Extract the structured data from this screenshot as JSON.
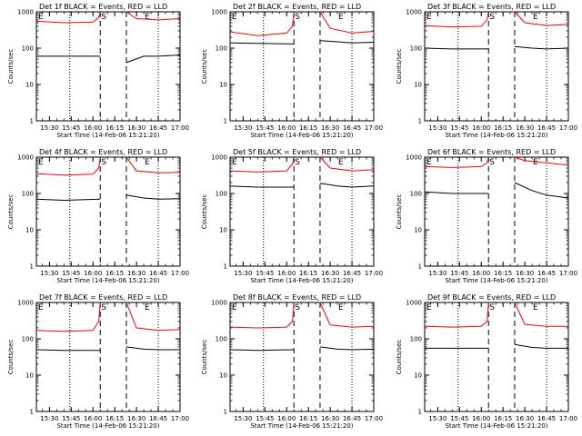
{
  "figure": {
    "xlabel": "Start Time (14-Feb-06 15:21:20)",
    "ylabel": "Counts/sec",
    "x_ticks": [
      "15:30",
      "15:45",
      "16:00",
      "16:15",
      "16:30",
      "16:45",
      "17:00"
    ],
    "y_ticks": [
      "1",
      "10",
      "100",
      "1000"
    ],
    "marker_start": "S",
    "marker_end": "E",
    "marker_left": "E",
    "colors": {
      "events": "#000000",
      "lld": "#ff0000"
    }
  },
  "chart_data": [
    {
      "type": "line",
      "title": "Det 1f BLACK = Events, RED = LLD",
      "y_scale": "log",
      "ylim": [
        1,
        1000
      ],
      "xlim": [
        "15:21",
        "17:00"
      ],
      "dotted_lines_x": [
        "15:44",
        "16:45"
      ],
      "dashed_lines_x": [
        "16:05",
        "16:23"
      ],
      "series": [
        {
          "color": "#000000",
          "x": [
            "15:21",
            "15:40",
            "16:05",
            "16:21",
            "16:23",
            "16:35",
            "16:45",
            "17:00"
          ],
          "y": [
            60,
            60,
            60,
            null,
            40,
            60,
            60,
            65
          ]
        },
        {
          "color": "#ff0000",
          "x": [
            "15:21",
            "15:40",
            "16:00",
            "16:04",
            "16:05",
            "16:21",
            "16:23",
            "16:30",
            "16:45",
            "17:00"
          ],
          "y": [
            550,
            500,
            520,
            700,
            1000,
            null,
            1000,
            650,
            600,
            650
          ]
        }
      ]
    },
    {
      "type": "line",
      "title": "Det 2f BLACK = Events, RED = LLD",
      "y_scale": "log",
      "ylim": [
        1,
        1000
      ],
      "xlim": [
        "15:21",
        "17:00"
      ],
      "dotted_lines_x": [
        "15:44",
        "16:45"
      ],
      "dashed_lines_x": [
        "16:05",
        "16:23"
      ],
      "series": [
        {
          "color": "#000000",
          "x": [
            "15:21",
            "15:40",
            "16:05",
            "16:21",
            "16:23",
            "16:35",
            "16:45",
            "17:00"
          ],
          "y": [
            140,
            135,
            130,
            null,
            160,
            150,
            140,
            145
          ]
        },
        {
          "color": "#ff0000",
          "x": [
            "15:21",
            "15:40",
            "16:00",
            "16:04",
            "16:05",
            "16:21",
            "16:23",
            "16:30",
            "16:45",
            "17:00"
          ],
          "y": [
            280,
            220,
            260,
            400,
            1000,
            null,
            1000,
            350,
            260,
            290
          ]
        }
      ]
    },
    {
      "type": "line",
      "title": "Det 3f BLACK = Events, RED = LLD",
      "y_scale": "log",
      "ylim": [
        1,
        1000
      ],
      "xlim": [
        "15:21",
        "17:00"
      ],
      "dotted_lines_x": [
        "15:44",
        "16:45"
      ],
      "dashed_lines_x": [
        "16:05",
        "16:23"
      ],
      "series": [
        {
          "color": "#000000",
          "x": [
            "15:21",
            "15:40",
            "16:05",
            "16:21",
            "16:23",
            "16:35",
            "16:45",
            "17:00"
          ],
          "y": [
            100,
            95,
            95,
            null,
            110,
            100,
            95,
            100
          ]
        },
        {
          "color": "#ff0000",
          "x": [
            "15:21",
            "15:40",
            "16:00",
            "16:04",
            "16:05",
            "16:21",
            "16:23",
            "16:30",
            "16:45",
            "17:00"
          ],
          "y": [
            420,
            380,
            400,
            600,
            1000,
            null,
            1000,
            500,
            420,
            450
          ]
        }
      ]
    },
    {
      "type": "line",
      "title": "Det 4f BLACK = Events, RED = LLD",
      "y_scale": "log",
      "ylim": [
        1,
        1000
      ],
      "xlim": [
        "15:21",
        "17:00"
      ],
      "dotted_lines_x": [
        "15:44",
        "16:45"
      ],
      "dashed_lines_x": [
        "16:05",
        "16:23"
      ],
      "series": [
        {
          "color": "#000000",
          "x": [
            "15:21",
            "15:40",
            "16:05",
            "16:21",
            "16:23",
            "16:35",
            "16:45",
            "17:00"
          ],
          "y": [
            70,
            65,
            70,
            null,
            90,
            75,
            70,
            72
          ]
        },
        {
          "color": "#ff0000",
          "x": [
            "15:21",
            "15:40",
            "16:00",
            "16:04",
            "16:05",
            "16:21",
            "16:23",
            "16:30",
            "16:45",
            "17:00"
          ],
          "y": [
            350,
            320,
            340,
            500,
            1000,
            null,
            1000,
            420,
            370,
            380
          ]
        }
      ]
    },
    {
      "type": "line",
      "title": "Det 5f BLACK = Events, RED = LLD",
      "y_scale": "log",
      "ylim": [
        1,
        1000
      ],
      "xlim": [
        "15:21",
        "17:00"
      ],
      "dotted_lines_x": [
        "15:44",
        "16:45"
      ],
      "dashed_lines_x": [
        "16:05",
        "16:23"
      ],
      "series": [
        {
          "color": "#000000",
          "x": [
            "15:21",
            "15:40",
            "16:05",
            "16:21",
            "16:23",
            "16:35",
            "16:45",
            "17:00"
          ],
          "y": [
            160,
            150,
            150,
            null,
            190,
            160,
            150,
            160
          ]
        },
        {
          "color": "#ff0000",
          "x": [
            "15:21",
            "15:40",
            "16:00",
            "16:04",
            "16:05",
            "16:21",
            "16:23",
            "16:30",
            "16:45",
            "17:00"
          ],
          "y": [
            420,
            390,
            420,
            650,
            1000,
            null,
            1000,
            500,
            420,
            450
          ]
        }
      ]
    },
    {
      "type": "line",
      "title": "Det 6f BLACK = Events, RED = LLD",
      "y_scale": "log",
      "ylim": [
        1,
        1000
      ],
      "xlim": [
        "15:21",
        "17:00"
      ],
      "dotted_lines_x": [
        "15:44",
        "16:45"
      ],
      "dashed_lines_x": [
        "16:05",
        "16:23"
      ],
      "series": [
        {
          "color": "#000000",
          "x": [
            "15:21",
            "15:40",
            "16:05",
            "16:21",
            "16:23",
            "16:35",
            "16:45",
            "17:00"
          ],
          "y": [
            110,
            100,
            100,
            null,
            200,
            120,
            90,
            75
          ]
        },
        {
          "color": "#ff0000",
          "x": [
            "15:21",
            "15:40",
            "16:00",
            "16:04",
            "16:05",
            "16:21",
            "16:23",
            "16:30",
            "16:45",
            "17:00"
          ],
          "y": [
            550,
            520,
            550,
            700,
            1000,
            null,
            1000,
            800,
            700,
            600
          ]
        }
      ]
    },
    {
      "type": "line",
      "title": "Det 7f BLACK = Events, RED = LLD",
      "y_scale": "log",
      "ylim": [
        1,
        1000
      ],
      "xlim": [
        "15:21",
        "17:00"
      ],
      "dotted_lines_x": [
        "15:44",
        "16:45"
      ],
      "dashed_lines_x": [
        "16:05",
        "16:23"
      ],
      "series": [
        {
          "color": "#000000",
          "x": [
            "15:21",
            "15:40",
            "16:05",
            "16:21",
            "16:23",
            "16:35",
            "16:45",
            "17:00"
          ],
          "y": [
            50,
            48,
            48,
            null,
            60,
            52,
            50,
            50
          ]
        },
        {
          "color": "#ff0000",
          "x": [
            "15:21",
            "15:40",
            "16:00",
            "16:04",
            "16:05",
            "16:21",
            "16:23",
            "16:30",
            "16:45",
            "17:00"
          ],
          "y": [
            170,
            160,
            170,
            300,
            1000,
            null,
            1000,
            200,
            170,
            180
          ]
        }
      ]
    },
    {
      "type": "line",
      "title": "Det 8f BLACK = Events, RED = LLD",
      "y_scale": "log",
      "ylim": [
        1,
        1000
      ],
      "xlim": [
        "15:21",
        "17:00"
      ],
      "dotted_lines_x": [
        "15:44",
        "16:45"
      ],
      "dashed_lines_x": [
        "16:05",
        "16:23"
      ],
      "series": [
        {
          "color": "#000000",
          "x": [
            "15:21",
            "15:40",
            "16:05",
            "16:21",
            "16:23",
            "16:35",
            "16:45",
            "17:00"
          ],
          "y": [
            50,
            48,
            50,
            null,
            60,
            52,
            50,
            52
          ]
        },
        {
          "color": "#ff0000",
          "x": [
            "15:21",
            "15:40",
            "16:00",
            "16:04",
            "16:05",
            "16:21",
            "16:23",
            "16:30",
            "16:45",
            "17:00"
          ],
          "y": [
            210,
            200,
            210,
            300,
            1000,
            null,
            1000,
            240,
            210,
            220
          ]
        }
      ]
    },
    {
      "type": "line",
      "title": "Det 9f BLACK = Events, RED = LLD",
      "y_scale": "log",
      "ylim": [
        1,
        1000
      ],
      "xlim": [
        "15:21",
        "17:00"
      ],
      "dotted_lines_x": [
        "15:44",
        "16:45"
      ],
      "dashed_lines_x": [
        "16:05",
        "16:23"
      ],
      "series": [
        {
          "color": "#000000",
          "x": [
            "15:21",
            "15:40",
            "16:05",
            "16:21",
            "16:23",
            "16:35",
            "16:45",
            "17:00"
          ],
          "y": [
            55,
            55,
            55,
            null,
            70,
            58,
            55,
            55
          ]
        },
        {
          "color": "#ff0000",
          "x": [
            "15:21",
            "15:40",
            "16:00",
            "16:04",
            "16:05",
            "16:21",
            "16:23",
            "16:30",
            "16:45",
            "17:00"
          ],
          "y": [
            220,
            210,
            220,
            300,
            1000,
            null,
            1000,
            250,
            220,
            220
          ]
        }
      ]
    }
  ]
}
